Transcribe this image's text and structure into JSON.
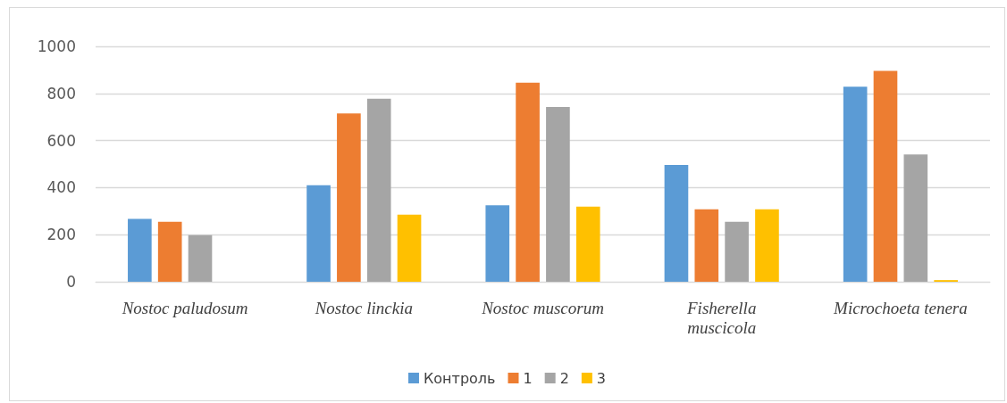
{
  "chart_data": {
    "type": "bar",
    "categories": [
      "Nostoc paludosum",
      "Nostoc linckia",
      "Nostoc muscorum",
      "Fisherella\nmuscicola",
      "Microchoeta tenera"
    ],
    "series": [
      {
        "name": "Контроль",
        "color": "#5b9bd5",
        "values": [
          267,
          410,
          325,
          496,
          829
        ]
      },
      {
        "name": "1",
        "color": "#ed7d31",
        "values": [
          255,
          715,
          846,
          308,
          896
        ]
      },
      {
        "name": "2",
        "color": "#a5a5a5",
        "values": [
          198,
          777,
          742,
          255,
          541
        ]
      },
      {
        "name": "3",
        "color": "#ffc000",
        "values": [
          null,
          285,
          319,
          308,
          7
        ]
      }
    ],
    "ylim": [
      0,
      1000
    ],
    "yticks": [
      0,
      200,
      400,
      600,
      800,
      1000
    ],
    "grid": "y",
    "legend": "bottom"
  }
}
